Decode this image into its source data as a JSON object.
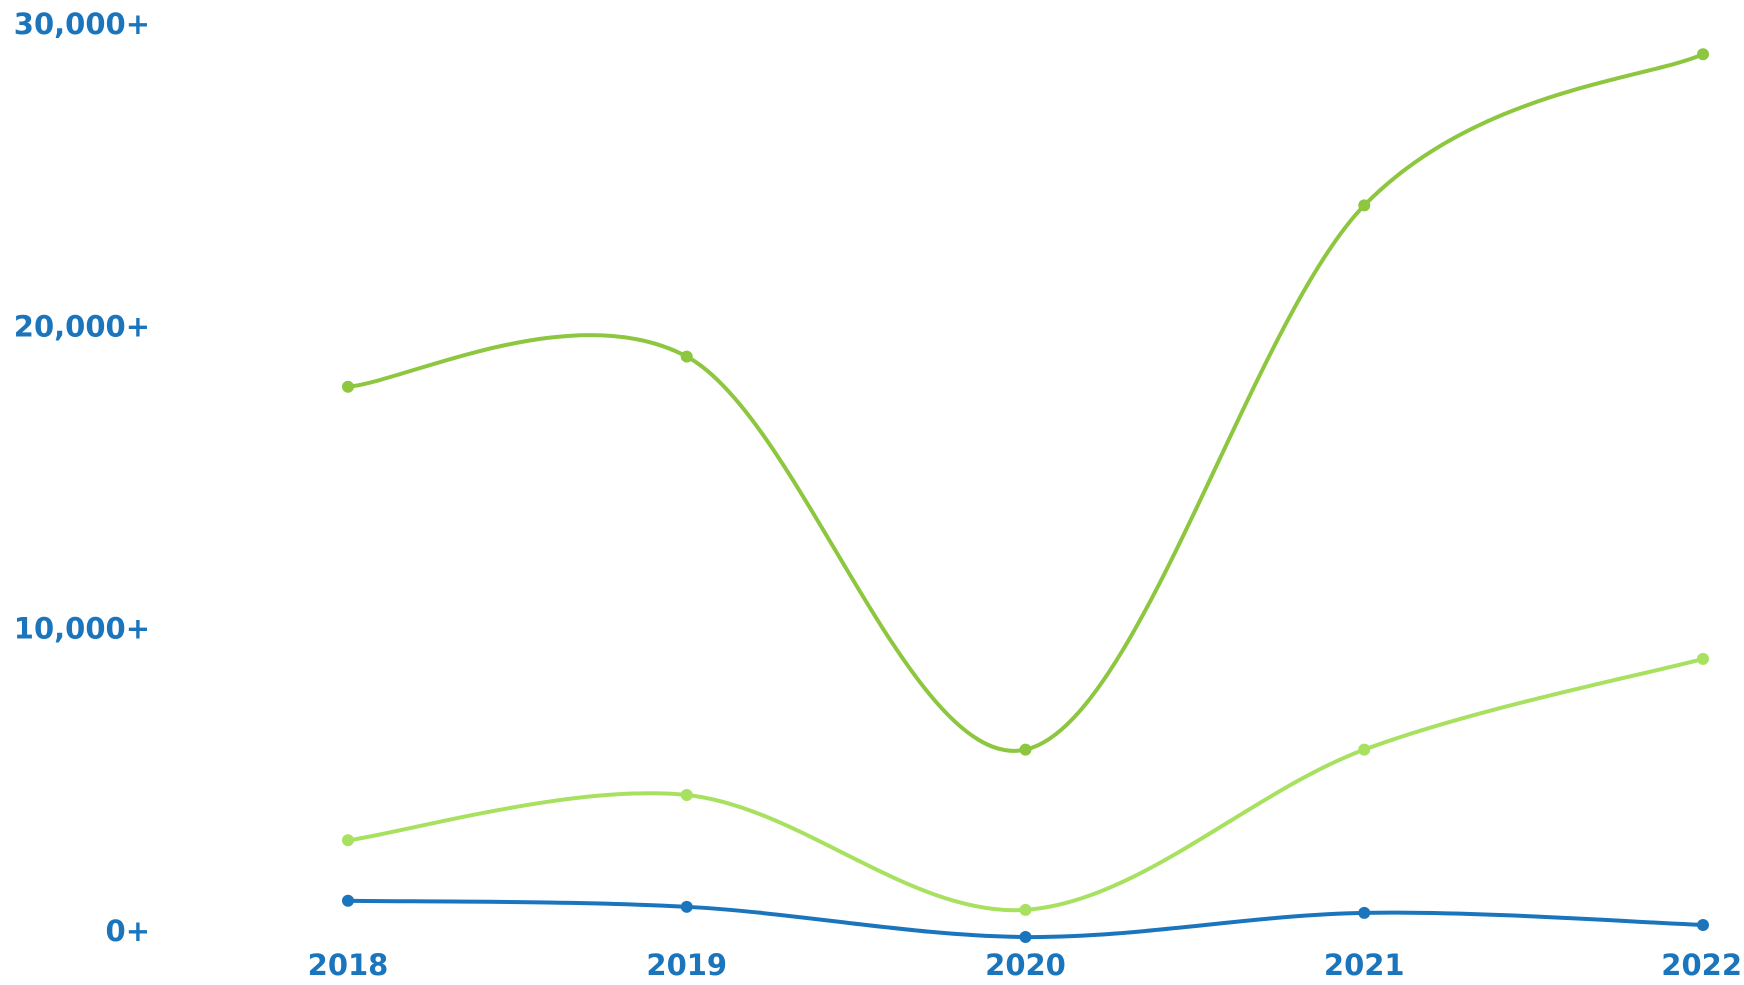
{
  "chart_data": {
    "type": "line",
    "title": "",
    "xlabel": "",
    "ylabel": "",
    "categories": [
      "2018",
      "2019",
      "2020",
      "2021",
      "2022"
    ],
    "ylim": [
      0,
      30000
    ],
    "yticks": [
      0,
      10000,
      20000,
      30000
    ],
    "ytick_labels": [
      "0+",
      "10,000+",
      "20,000+",
      "30,000+"
    ],
    "xtick_labels": [
      "2018",
      "2019",
      "2020",
      "2021",
      "2022"
    ],
    "grid": false,
    "legend": "none",
    "smooth": true,
    "series": [
      {
        "values": [
          18000,
          19000,
          6000,
          24000,
          29000
        ],
        "color": "#8DC63F"
      },
      {
        "values": [
          3000,
          4500,
          700,
          6000,
          9000
        ],
        "color": "#A8E05F"
      },
      {
        "values": [
          1000,
          800,
          -200,
          600,
          200
        ],
        "color": "#1B75BC"
      }
    ],
    "tick_color": "#1B75BC"
  }
}
